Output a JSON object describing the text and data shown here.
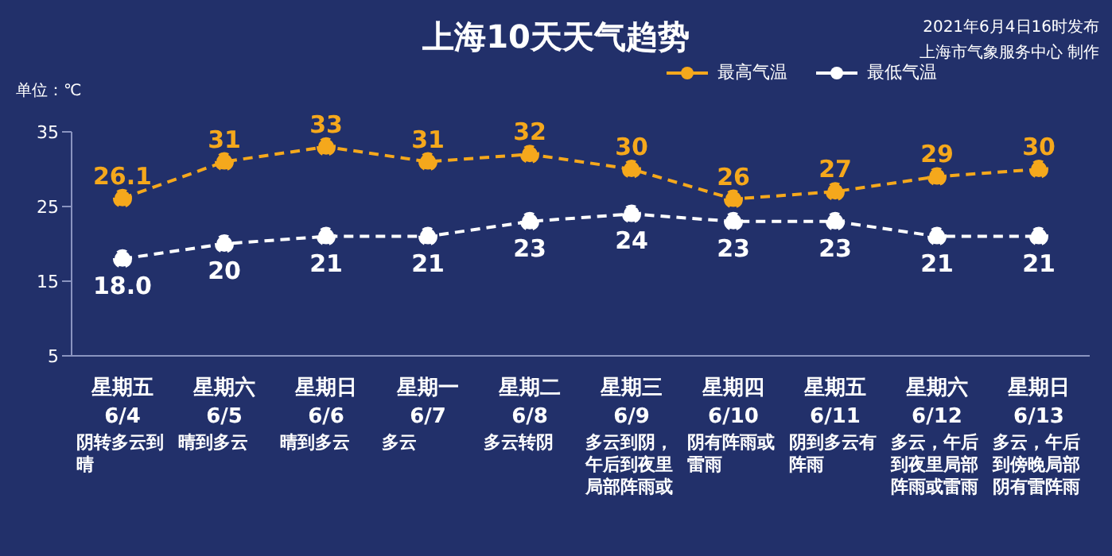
{
  "chart_data": {
    "type": "line",
    "title": "上海10天天气趋势",
    "subtitle": "2021年6月4日16时发布",
    "ylabel": "单位：℃",
    "categories": [
      "星期五\n6/4",
      "星期六\n6/5",
      "星期日\n6/6",
      "星期一\n6/7",
      "星期二\n6/8",
      "星期三\n6/9",
      "星期四\n6/10",
      "星期五\n6/11",
      "星期六\n6/12",
      "星期日\n6/13"
    ],
    "series": [
      {
        "name": "最高气温",
        "color": "#f5a81c",
        "values": [
          26.1,
          31,
          33,
          31,
          32,
          30,
          26,
          27,
          29,
          30
        ],
        "value_labels": [
          "26.1",
          "31",
          "33",
          "31",
          "32",
          "30",
          "26",
          "27",
          "29",
          "30"
        ]
      },
      {
        "name": "最低气温",
        "color": "#ffffff",
        "values": [
          18.0,
          20,
          21,
          21,
          23,
          24,
          23,
          23,
          21,
          21
        ],
        "value_labels": [
          "18.0",
          "20",
          "21",
          "21",
          "23",
          "24",
          "23",
          "23",
          "21",
          "21"
        ]
      }
    ],
    "ylim": [
      5,
      35
    ],
    "yticks": [
      5,
      15,
      25,
      35
    ],
    "marker": "circle",
    "line_style": "dashed",
    "legend": "top right",
    "annotations": [
      "上海市气象服务中心 制作",
      "阴转多云到晴",
      "晴到多云",
      "晴到多云",
      "多云",
      "多云转阴",
      "多云到阴，午后到夜里局部阵雨或",
      "阴有阵雨或雷雨",
      "阴到多云有阵雨",
      "多云，午后到夜里局部阵雨或雷雨",
      "多云，午后到傍晚局部阴有雷阵雨"
    ]
  }
}
